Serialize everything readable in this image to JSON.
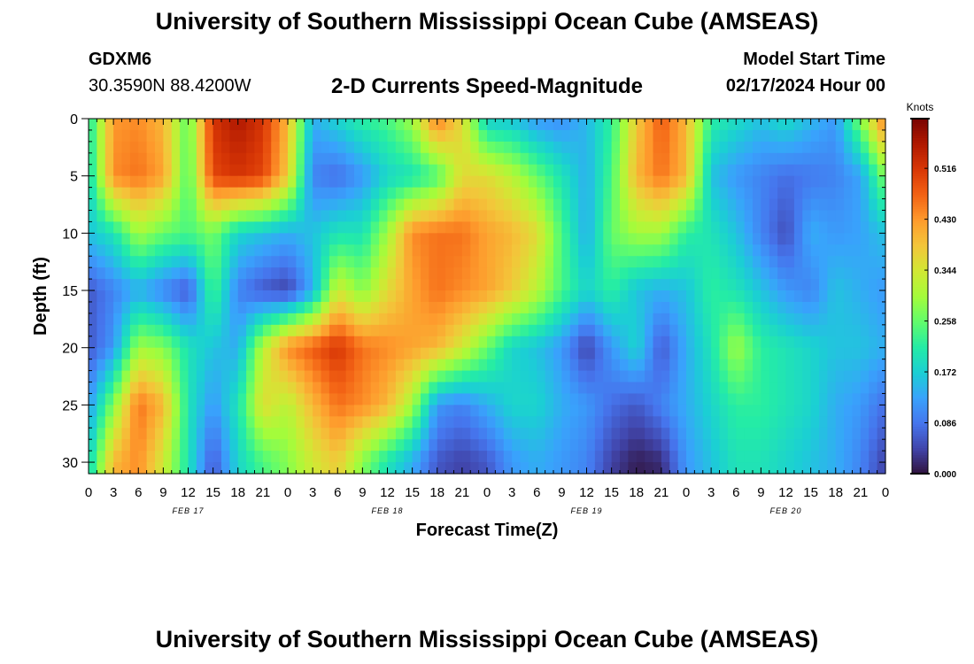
{
  "page": {
    "title": "University of Southern Mississippi Ocean Cube (AMSEAS)",
    "station": "GDXM6",
    "location": "30.3590N  88.4200W",
    "chart_title": "2-D Currents Speed-Magnitude",
    "model_start_label": "Model Start Time",
    "model_start_value": "02/17/2024 Hour 00",
    "footer_title": "University of Southern Mississippi Ocean Cube (AMSEAS)"
  },
  "chart_data": {
    "type": "heatmap",
    "xlabel": "Forecast Time(Z)",
    "ylabel": "Depth (ft)",
    "colorbar_label": "Knots",
    "x_tick_labels": [
      "0",
      "3",
      "6",
      "9",
      "12",
      "15",
      "18",
      "21",
      "0",
      "3",
      "6",
      "9",
      "12",
      "15",
      "18",
      "21",
      "0",
      "3",
      "6",
      "9",
      "12",
      "15",
      "18",
      "21",
      "0",
      "3",
      "6",
      "9",
      "12",
      "15",
      "18",
      "21",
      "0"
    ],
    "date_labels": [
      "FEB 17",
      "FEB 18",
      "FEB 19",
      "FEB 20"
    ],
    "y_ticks": [
      0,
      5,
      10,
      15,
      20,
      25,
      30
    ],
    "ylim": [
      0,
      31
    ],
    "xlim_hours": [
      0,
      96
    ],
    "colorbar_ticks": [
      0.0,
      0.086,
      0.172,
      0.258,
      0.344,
      0.43,
      0.516
    ],
    "color_range": [
      0,
      0.6
    ],
    "colormap": [
      "#30123b",
      "#4145ab",
      "#4675ed",
      "#39a2fc",
      "#1bcfd4",
      "#24eca6",
      "#61fc6c",
      "#a4fc3b",
      "#d1e834",
      "#f3c63a",
      "#fe9b2d",
      "#f36315",
      "#d93806",
      "#b11901",
      "#7a0402"
    ],
    "hours": [
      0,
      3,
      6,
      9,
      12,
      15,
      18,
      21,
      24,
      27,
      30,
      33,
      36,
      39,
      42,
      45,
      48,
      51,
      54,
      57,
      60,
      63,
      66,
      69,
      72,
      75,
      78,
      81,
      84,
      87,
      90,
      93,
      96
    ],
    "depths_ft": [
      0,
      5,
      10,
      15,
      20,
      25,
      30
    ],
    "values_knots": [
      [
        0.2,
        0.43,
        0.44,
        0.4,
        0.25,
        0.52,
        0.56,
        0.52,
        0.4,
        0.14,
        0.18,
        0.22,
        0.24,
        0.3,
        0.46,
        0.36,
        0.17,
        0.16,
        0.12,
        0.11,
        0.15,
        0.22,
        0.38,
        0.48,
        0.4,
        0.22,
        0.19,
        0.16,
        0.19,
        0.15,
        0.12,
        0.28,
        0.46
      ],
      [
        0.18,
        0.44,
        0.46,
        0.42,
        0.24,
        0.5,
        0.52,
        0.5,
        0.38,
        0.1,
        0.08,
        0.12,
        0.18,
        0.2,
        0.24,
        0.36,
        0.36,
        0.32,
        0.26,
        0.2,
        0.14,
        0.24,
        0.4,
        0.46,
        0.4,
        0.16,
        0.12,
        0.1,
        0.08,
        0.09,
        0.1,
        0.13,
        0.28
      ],
      [
        0.16,
        0.2,
        0.3,
        0.26,
        0.24,
        0.27,
        0.18,
        0.16,
        0.14,
        0.16,
        0.2,
        0.2,
        0.3,
        0.44,
        0.46,
        0.46,
        0.42,
        0.4,
        0.36,
        0.24,
        0.14,
        0.26,
        0.3,
        0.3,
        0.22,
        0.2,
        0.16,
        0.1,
        0.05,
        0.14,
        0.12,
        0.13,
        0.16
      ],
      [
        0.06,
        0.1,
        0.14,
        0.1,
        0.06,
        0.24,
        0.1,
        0.06,
        0.04,
        0.14,
        0.34,
        0.28,
        0.36,
        0.42,
        0.46,
        0.44,
        0.42,
        0.38,
        0.32,
        0.24,
        0.18,
        0.22,
        0.16,
        0.14,
        0.16,
        0.22,
        0.2,
        0.16,
        0.12,
        0.1,
        0.16,
        0.14,
        0.12
      ],
      [
        0.06,
        0.12,
        0.3,
        0.28,
        0.2,
        0.16,
        0.14,
        0.32,
        0.44,
        0.48,
        0.52,
        0.46,
        0.44,
        0.42,
        0.4,
        0.34,
        0.26,
        0.18,
        0.16,
        0.12,
        0.04,
        0.12,
        0.18,
        0.06,
        0.14,
        0.2,
        0.3,
        0.22,
        0.2,
        0.18,
        0.16,
        0.16,
        0.14
      ],
      [
        0.12,
        0.28,
        0.46,
        0.4,
        0.2,
        0.12,
        0.2,
        0.36,
        0.32,
        0.4,
        0.46,
        0.44,
        0.4,
        0.3,
        0.12,
        0.1,
        0.14,
        0.18,
        0.18,
        0.14,
        0.12,
        0.08,
        0.06,
        0.1,
        0.14,
        0.18,
        0.22,
        0.22,
        0.2,
        0.18,
        0.14,
        0.12,
        0.08
      ],
      [
        0.18,
        0.4,
        0.44,
        0.34,
        0.2,
        0.06,
        0.18,
        0.24,
        0.28,
        0.34,
        0.38,
        0.28,
        0.2,
        0.14,
        0.06,
        0.04,
        0.06,
        0.12,
        0.14,
        0.12,
        0.1,
        0.04,
        0.01,
        0.02,
        0.12,
        0.16,
        0.2,
        0.2,
        0.18,
        0.16,
        0.14,
        0.1,
        0.04
      ]
    ]
  }
}
